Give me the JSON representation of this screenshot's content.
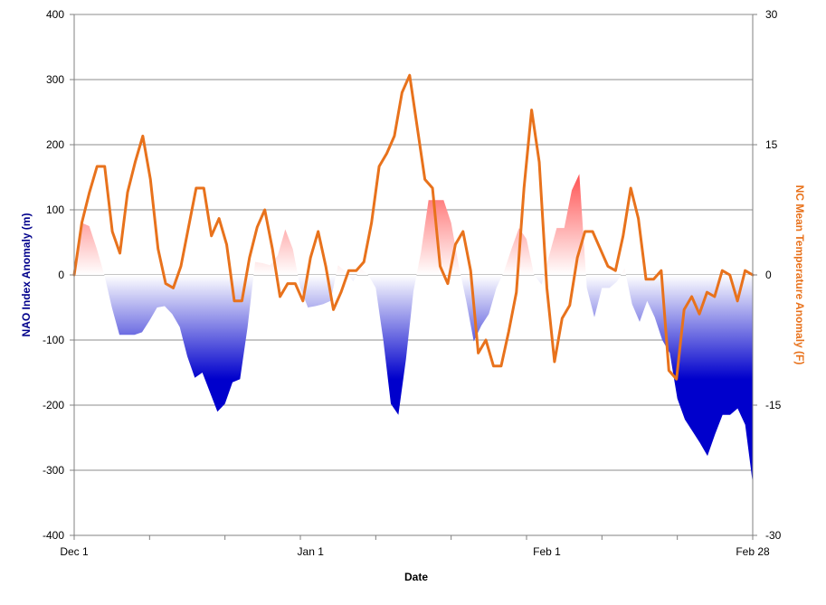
{
  "chart_data": {
    "type": "area",
    "title": "",
    "xlabel": "Date",
    "x_ticks": [
      "Dec 1",
      "Jan 1",
      "Feb 1",
      "Feb 28"
    ],
    "x_tick_days": [
      0,
      31,
      62,
      89
    ],
    "ylabel_left": "NAO Index Anomaly (m)",
    "ylabel_right": "NC Mean Temperature Anomaly (F)",
    "ylim_left": [
      -400,
      400
    ],
    "ylim_right": [
      -30,
      30
    ],
    "yticks_left": [
      400,
      300,
      200,
      100,
      0,
      -100,
      -200,
      -300,
      -400
    ],
    "yticks_right": [
      30,
      15,
      0,
      -15,
      -30
    ],
    "grid": true,
    "series": [
      {
        "axis": "left",
        "style": "gradient-area",
        "positive_color": "#ff3b3b",
        "negative_color": "#0000cc",
        "values": [
          5,
          80,
          75,
          40,
          0,
          -50,
          -92,
          -92,
          -92,
          -88,
          -70,
          -50,
          -48,
          -60,
          -80,
          -125,
          -158,
          -150,
          -180,
          -210,
          -198,
          -165,
          -160,
          -80,
          20,
          18,
          15,
          30,
          70,
          40,
          -20,
          -50,
          -48,
          -45,
          -40,
          15,
          5,
          -10,
          10,
          0,
          -20,
          -100,
          -198,
          -215,
          -130,
          -25,
          35,
          115,
          115,
          115,
          80,
          15,
          -40,
          -102,
          -78,
          -60,
          -20,
          5,
          40,
          72,
          55,
          0,
          -15,
          30,
          72,
          72,
          130,
          155,
          -20,
          -65,
          -20,
          -20,
          -10,
          10,
          -45,
          -72,
          -40,
          -65,
          -100,
          -120,
          -190,
          -222,
          -240,
          -258,
          -278,
          -245,
          -215,
          -215,
          -205,
          -230,
          -320
        ]
      },
      {
        "axis": "right",
        "style": "line",
        "color": "#e8721c",
        "values": [
          0,
          6,
          9.5,
          12.5,
          12.5,
          5,
          2.5,
          9.5,
          13,
          16,
          11,
          3,
          -1,
          -1.5,
          1,
          5.5,
          10,
          10,
          4.5,
          6.5,
          3.5,
          -3,
          -3,
          2,
          5.5,
          7.5,
          3,
          -2.5,
          -1,
          -1,
          -3,
          2,
          5,
          1,
          -4,
          -2,
          0.5,
          0.5,
          1.5,
          6,
          12.5,
          14,
          16,
          21,
          23,
          17,
          11,
          10,
          1,
          -1,
          3.5,
          5,
          0.5,
          -9,
          -7.5,
          -10.5,
          -10.5,
          -6.5,
          -2,
          10,
          19,
          13,
          -1.5,
          -10,
          -5,
          -3.5,
          2,
          5,
          5,
          3,
          1,
          0.5,
          4.5,
          10,
          6.5,
          -0.5,
          -0.5,
          0.5,
          -11,
          -12,
          -4,
          -2.5,
          -4.5,
          -2,
          -2.5,
          0.5,
          0,
          -3,
          0.5,
          0
        ]
      }
    ]
  }
}
